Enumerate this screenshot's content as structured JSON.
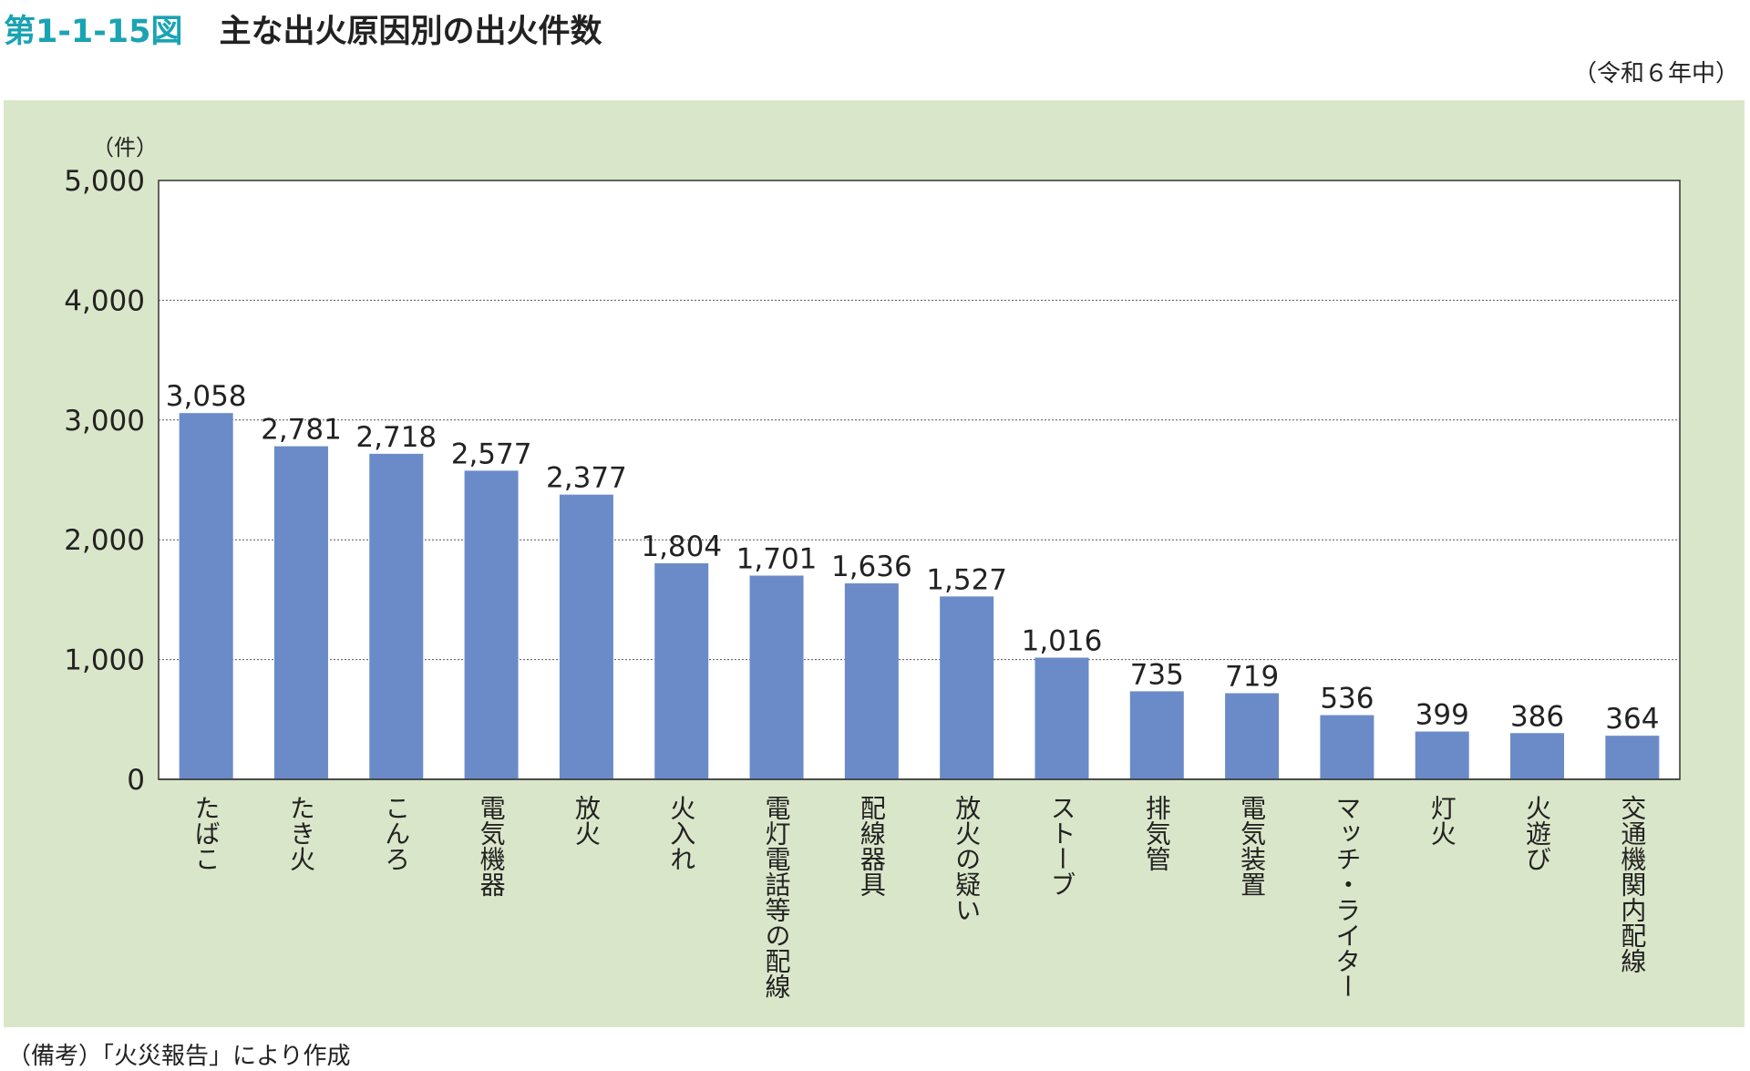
{
  "header": {
    "figure_number": "第1-1-15図",
    "title": "主な出火原因別の出火件数",
    "period": "（令和６年中）"
  },
  "footer": {
    "note": "（備考）「火災報告」により作成"
  },
  "colors": {
    "bar": "#6b8bc8",
    "panel": "#dae6c9",
    "figure_number": "#1aa3b3"
  },
  "chart_data": {
    "type": "bar",
    "title": "主な出火原因別の出火件数",
    "ylabel": "（件）",
    "xlabel": "",
    "ylim": [
      0,
      5000
    ],
    "yticks": [
      "0",
      "1,000",
      "2,000",
      "3,000",
      "4,000",
      "5,000"
    ],
    "grid": true,
    "categories": [
      "たばこ",
      "たき火",
      "こんろ",
      "電気機器",
      "放火",
      "火入れ",
      "電灯電話等の配線",
      "配線器具",
      "放火の疑い",
      "ストーブ",
      "排気管",
      "電気装置",
      "マッチ・ライター",
      "灯火",
      "火遊び",
      "交通機関内配線"
    ],
    "values": [
      3058,
      2781,
      2718,
      2577,
      2377,
      1804,
      1701,
      1636,
      1527,
      1016,
      735,
      719,
      536,
      399,
      386,
      364
    ],
    "data_labels": [
      "3,058",
      "2,781",
      "2,718",
      "2,577",
      "2,377",
      "1,804",
      "1,701",
      "1,636",
      "1,527",
      "1,016",
      "735",
      "719",
      "536",
      "399",
      "386",
      "364"
    ]
  }
}
